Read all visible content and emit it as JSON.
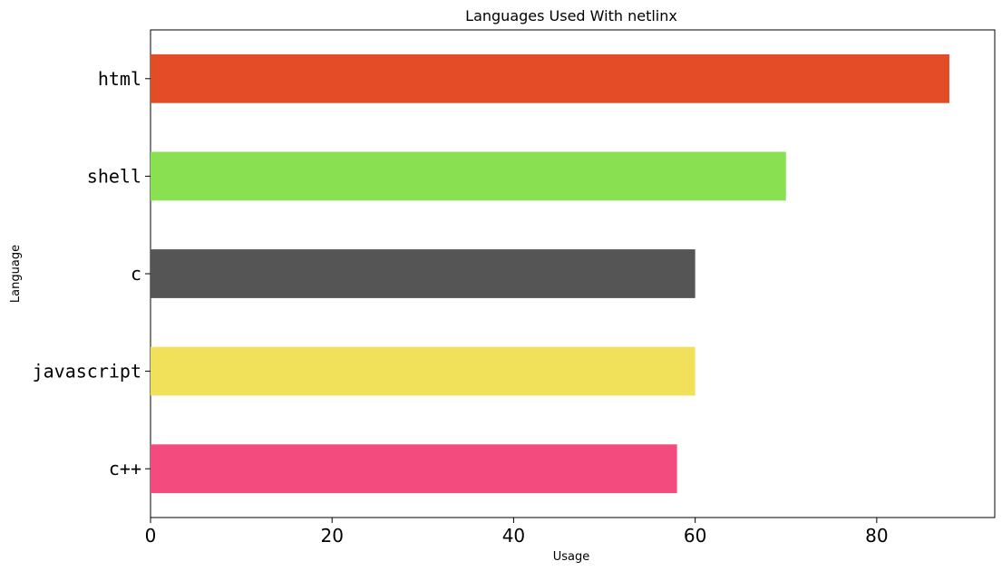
{
  "chart_data": {
    "type": "bar",
    "orientation": "horizontal",
    "title": "Languages Used With netlinx",
    "xlabel": "Usage",
    "ylabel": "Language",
    "categories": [
      "html",
      "shell",
      "c",
      "javascript",
      "c++"
    ],
    "values": [
      88,
      70,
      60,
      60,
      58
    ],
    "colors": [
      "#e34c26",
      "#89e051",
      "#555555",
      "#f1e05a",
      "#f34b7d"
    ],
    "xlim": [
      0,
      93
    ],
    "xticks": [
      0,
      20,
      40,
      60,
      80
    ],
    "grid": false,
    "legend": "none"
  }
}
